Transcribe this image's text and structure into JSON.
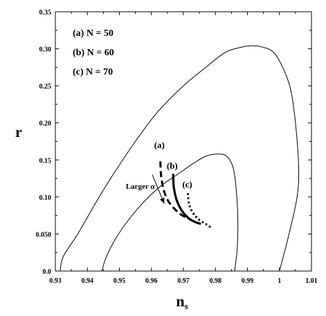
{
  "chart_data": {
    "type": "line",
    "xlabel": "n",
    "xlabel_sub": "s",
    "ylabel": "r",
    "xlim": [
      0.93,
      1.01
    ],
    "ylim": [
      0.0,
      0.35
    ],
    "xticks": [
      0.93,
      0.94,
      0.95,
      0.96,
      0.97,
      0.98,
      0.99,
      1.0,
      1.01
    ],
    "xtick_labels": [
      "0.93",
      "0.94",
      "0.95",
      "0.96",
      "0.97",
      "0.98",
      "0.99",
      "1",
      "1.01"
    ],
    "yticks": [
      0.0,
      0.05,
      0.1,
      0.15,
      0.2,
      0.25,
      0.3,
      0.35
    ],
    "ytick_labels": [
      "0.0",
      "0.050",
      "0.10",
      "0.15",
      "0.20",
      "0.25",
      "0.30",
      "0.35"
    ],
    "legend": [
      "(a) N = 50",
      "(b) N = 60",
      "(c) N = 70"
    ],
    "grid": false,
    "contours": [
      {
        "x": [
          0.9315,
          0.9325,
          0.937,
          0.943,
          0.948,
          0.955,
          0.962,
          0.97,
          0.977,
          0.983,
          0.988,
          0.991,
          0.994,
          0.998,
          1.001,
          1.0035,
          1.005,
          1.006,
          1.0055,
          1.003,
          1.0
        ],
        "y": [
          0.0,
          0.02,
          0.05,
          0.095,
          0.13,
          0.175,
          0.215,
          0.25,
          0.275,
          0.295,
          0.302,
          0.304,
          0.303,
          0.296,
          0.275,
          0.245,
          0.2,
          0.14,
          0.1,
          0.05,
          0.0
        ]
      },
      {
        "x": [
          0.9445,
          0.946,
          0.949,
          0.953,
          0.958,
          0.963,
          0.968,
          0.973,
          0.977,
          0.9808,
          0.9835,
          0.9855,
          0.9865,
          0.987,
          0.9868,
          0.986
        ],
        "y": [
          0.0,
          0.02,
          0.045,
          0.07,
          0.095,
          0.115,
          0.13,
          0.145,
          0.155,
          0.158,
          0.155,
          0.14,
          0.11,
          0.07,
          0.03,
          0.0
        ]
      }
    ],
    "series": [
      {
        "name": "(a)",
        "x": [
          0.9628,
          0.963,
          0.9638,
          0.9652,
          0.967,
          0.969,
          0.971,
          0.9726
        ],
        "y": [
          0.148,
          0.13,
          0.11,
          0.095,
          0.085,
          0.077,
          0.072,
          0.069
        ]
      },
      {
        "name": "(b)",
        "x": [
          0.9668,
          0.967,
          0.9678,
          0.969,
          0.9705,
          0.972,
          0.9738,
          0.9752
        ],
        "y": [
          0.13,
          0.113,
          0.097,
          0.085,
          0.076,
          0.07,
          0.066,
          0.064
        ]
      },
      {
        "name": "(c)",
        "x": [
          0.9714,
          0.9717,
          0.9725,
          0.9738,
          0.975,
          0.9764,
          0.9776,
          0.9785
        ],
        "y": [
          0.105,
          0.092,
          0.082,
          0.074,
          0.069,
          0.065,
          0.062,
          0.059
        ]
      }
    ],
    "annotations": [
      {
        "text": "(a)",
        "x": 0.9625,
        "y": 0.166
      },
      {
        "text": "(b)",
        "x": 0.9665,
        "y": 0.138
      },
      {
        "text": "(c)",
        "x": 0.9712,
        "y": 0.113
      },
      {
        "text": "Larger α",
        "x": 0.9565,
        "y": 0.111
      }
    ],
    "arrow": {
      "from": [
        0.9603,
        0.13
      ],
      "to": [
        0.964,
        0.091
      ]
    }
  }
}
